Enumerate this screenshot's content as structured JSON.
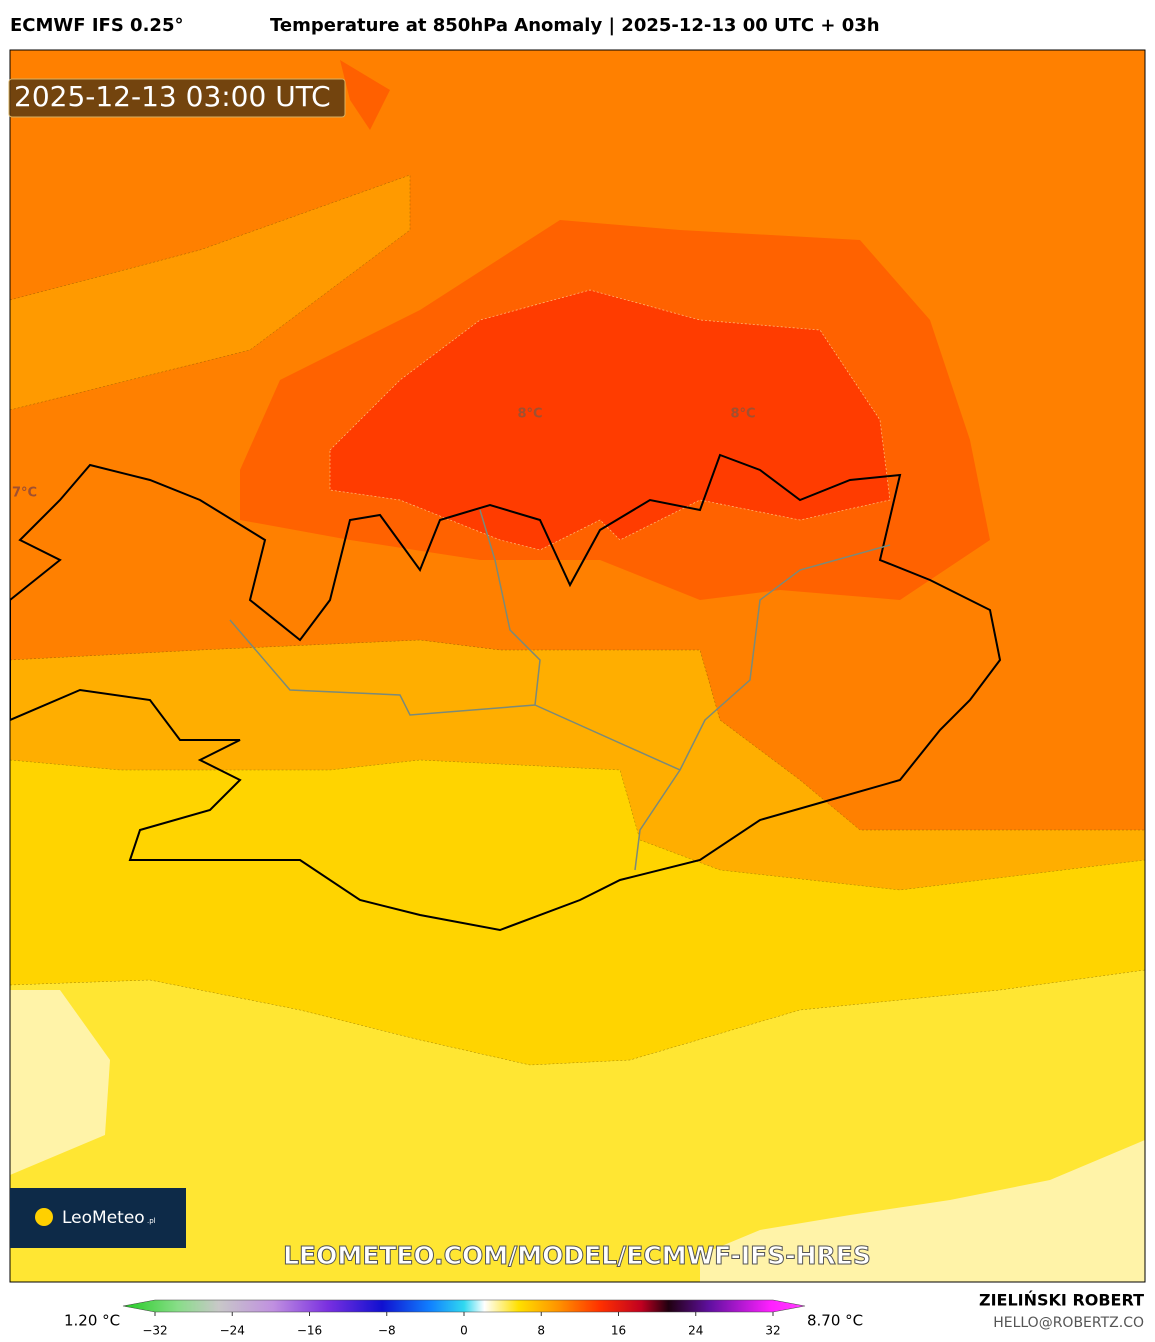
{
  "header": {
    "model": "ECMWF IFS 0.25°",
    "title": "Temperature at 850hPa Anomaly | 2025-12-13 00 UTC + 03h"
  },
  "map": {
    "timestamp": "2025-12-13 03:00 UTC",
    "contour_labels": [
      "8°C",
      "8°C",
      "7°C"
    ],
    "logo": "LeoMeteo",
    "logo_suffix": ".pl",
    "watermark": "LEOMETEO.COM/MODEL/ECMWF-IFS-HRES"
  },
  "colorbar": {
    "min_label": "1.20 °C",
    "max_label": "8.70 °C",
    "range": [
      -32,
      32
    ],
    "ticks": [
      {
        "value": -32,
        "label": "−32"
      },
      {
        "value": -24,
        "label": "−24"
      },
      {
        "value": -16,
        "label": "−16"
      },
      {
        "value": -8,
        "label": "−8"
      },
      0,
      8,
      16,
      24,
      32
    ]
  },
  "footer": {
    "author": "ZIELIŃSKI ROBERT",
    "email": "HELLO@ROBERTZ.CO"
  }
}
